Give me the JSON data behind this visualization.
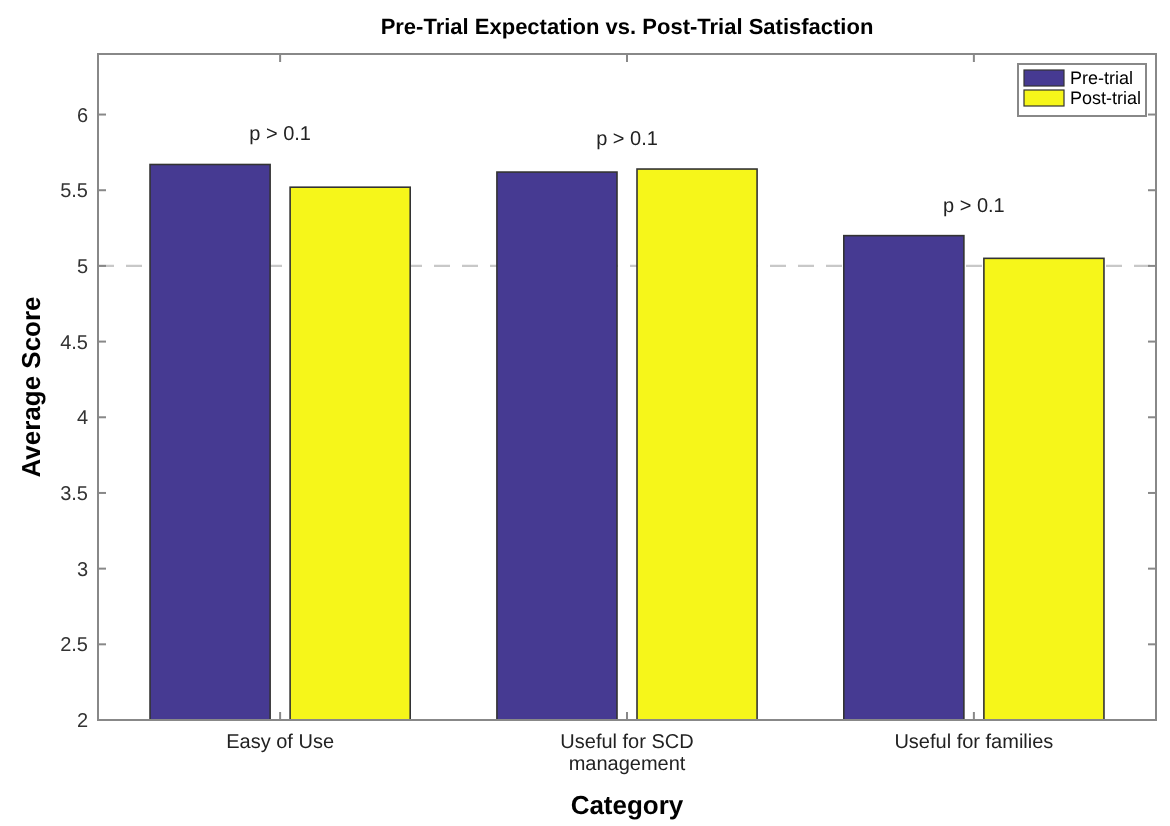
{
  "chart_data": {
    "type": "bar",
    "title": "Pre-Trial Expectation vs. Post-Trial Satisfaction",
    "xlabel": "Category",
    "ylabel": "Average Score",
    "categories": [
      "Easy of Use",
      "Useful for SCD management",
      "Useful for families"
    ],
    "series": [
      {
        "name": "Pre-trial",
        "color": "#463a92",
        "values": [
          5.67,
          5.62,
          5.2
        ]
      },
      {
        "name": "Post-trial",
        "color": "#f6f61a",
        "values": [
          5.52,
          5.64,
          5.05
        ]
      }
    ],
    "ylim": [
      2,
      6.4
    ],
    "yticks": [
      2,
      2.5,
      3,
      3.5,
      4,
      4.5,
      5,
      5.5,
      6
    ],
    "ref_lines": [
      {
        "axis": "y",
        "value": 5,
        "color": "#c8c8c8",
        "line_style": "dashed"
      }
    ],
    "annotations": [
      "p > 0.1",
      "p > 0.1",
      "p > 0.1"
    ],
    "legend": "top right",
    "grid": false
  }
}
